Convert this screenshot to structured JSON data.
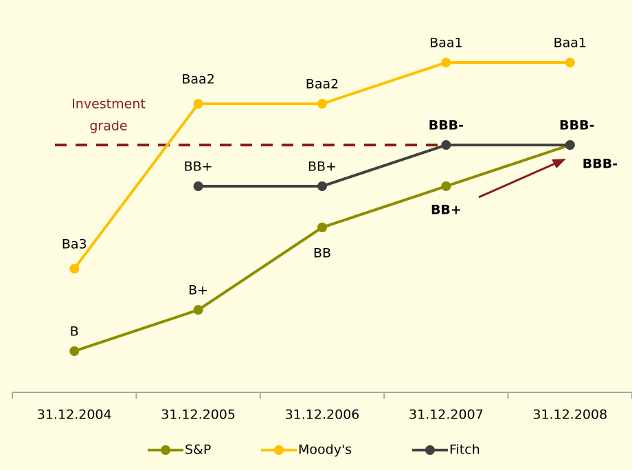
{
  "chart_data": {
    "type": "line",
    "categories": [
      "31.12.2004",
      "31.12.2005",
      "31.12.2006",
      "31.12.2007",
      "31.12.2008"
    ],
    "series": [
      {
        "name": "S&P",
        "color": "#8c8c00",
        "values": [
          1,
          2,
          4,
          5,
          6
        ],
        "value_labels": [
          "B",
          "B+",
          "BB",
          "BB+",
          "BBB-"
        ]
      },
      {
        "name": "Moody's",
        "color": "#ffc000",
        "values": [
          3,
          7,
          7,
          8,
          8
        ],
        "value_labels": [
          "Ba3",
          "Baa2",
          "Baa2",
          "Baa1",
          "Baa1"
        ]
      },
      {
        "name": "Fitch",
        "color": "#404040",
        "values": [
          null,
          5,
          5,
          6,
          6
        ],
        "value_labels": [
          null,
          "BB+",
          "BB+",
          "BBB-",
          "BBB-"
        ]
      }
    ],
    "ylim": [
      0,
      9
    ],
    "threshold": {
      "value": 6,
      "label": [
        "Investment",
        "grade"
      ],
      "color": "#8b1a1a"
    },
    "legend": "bottom"
  }
}
